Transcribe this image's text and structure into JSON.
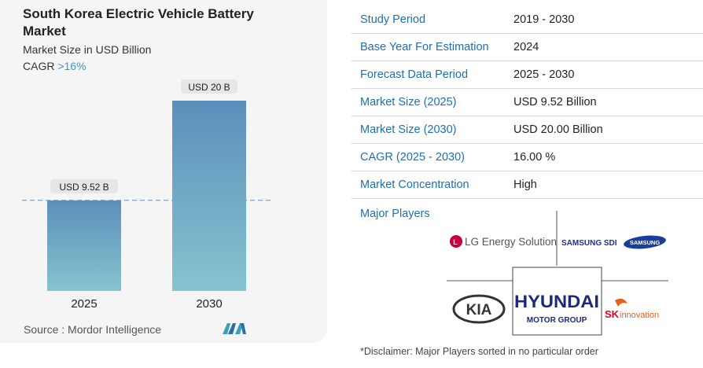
{
  "title": "South Korea Electric Vehicle Battery Market",
  "subtitle": "Market Size in USD Billion",
  "cagr_prefix": "CAGR",
  "cagr_value": ">16%",
  "source": "Source : Mordor Intelligence",
  "chart_data": {
    "type": "bar",
    "categories": [
      "2025",
      "2030"
    ],
    "values": [
      9.52,
      20
    ],
    "data_labels": [
      "USD 9.52 B",
      "USD 20 B"
    ],
    "title": "South Korea Electric Vehicle Battery Market",
    "ylabel": "Market Size in USD Billion",
    "ylim": [
      0,
      20
    ],
    "grid": false,
    "bar_gradient": [
      "#5b8fbb",
      "#86c4cf"
    ]
  },
  "table": [
    {
      "key": "Study Period",
      "value": "2019 - 2030"
    },
    {
      "key": "Base Year For Estimation",
      "value": "2024"
    },
    {
      "key": "Forecast Data Period",
      "value": "2025 - 2030"
    },
    {
      "key": "Market Size (2025)",
      "value": "USD 9.52 Billion"
    },
    {
      "key": "Market Size (2030)",
      "value": "USD 20.00 Billion"
    },
    {
      "key": "CAGR (2025 - 2030)",
      "value": "16.00 %"
    },
    {
      "key": "Market Concentration",
      "value": "High"
    }
  ],
  "players_title": "Major Players",
  "players": {
    "lg": "LG Energy Solution",
    "samsung_sdi": "SAMSUNG SDI",
    "samsung": "SAMSUNG",
    "kia": "KIA",
    "hyundai": "HYUNDAI",
    "hyundai_sub": "MOTOR GROUP",
    "sk": "SK",
    "sk_sub": "innovation"
  },
  "disclaimer": "*Disclaimer: Major Players sorted in no particular order",
  "colors": {
    "accent": "#1f6fb2",
    "bar_top": "#5b8fbb",
    "bar_bottom": "#86c4cf"
  }
}
